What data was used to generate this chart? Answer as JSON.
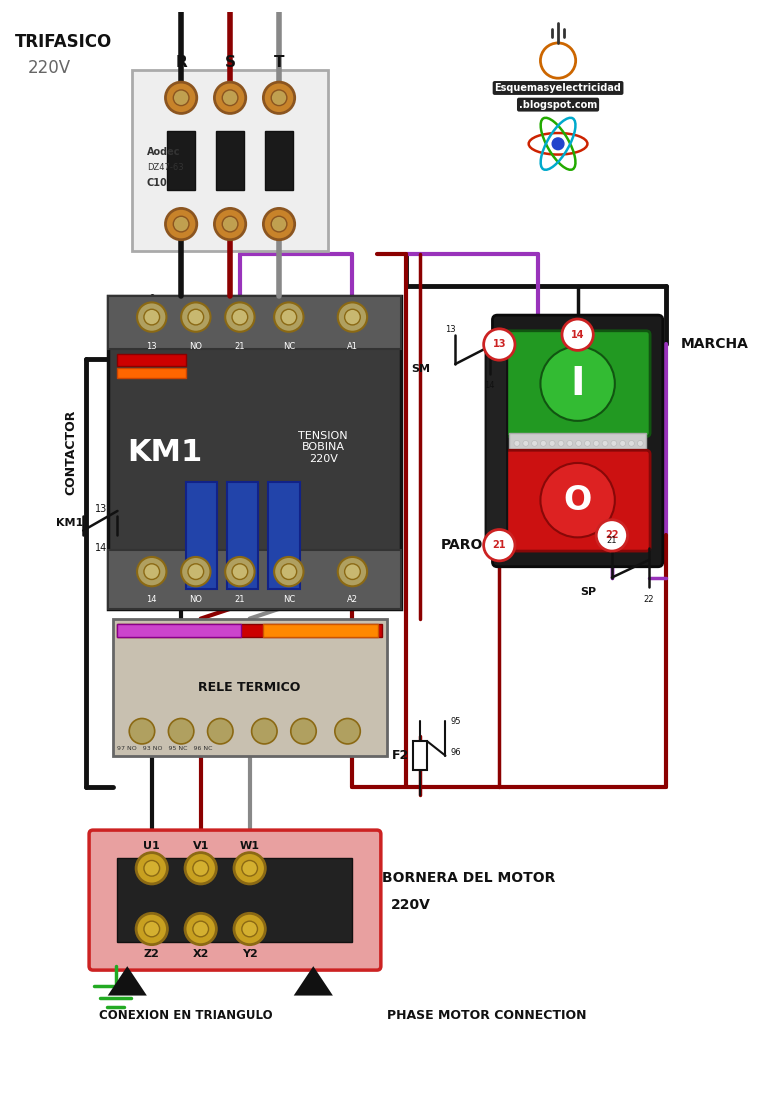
{
  "bg_color": "#ffffff",
  "wire_color_black": "#111111",
  "wire_color_red": "#880000",
  "wire_color_gray": "#888888",
  "wire_color_purple": "#9933bb",
  "wire_color_darkred": "#8B0000",
  "phase_labels": [
    "R",
    "S",
    "T"
  ],
  "contactor_label": "KM1",
  "contactor_text": "CONTACTOR",
  "tension_text": "TENSION\nBOBINA\n220V",
  "km1_aux_text": "KM1",
  "marcha_text": "MARCHA",
  "paro_text": "PARO",
  "sm_text": "SM",
  "sp_text": "SP",
  "f2_label": "F2",
  "rele_text": "RELE TERMICO",
  "bornera_text": "BORNERA DEL MOTOR",
  "bornera_v": "220V",
  "conexion_text": "CONEXION EN TRIANGULO",
  "phase_motor_text": "PHASE MOTOR CONNECTION",
  "logo_text1": "Esquemasyelectricidad",
  "logo_text2": ".blogspot.com",
  "trifasico_text": "TRIFASICO",
  "voltage_text": "220V"
}
